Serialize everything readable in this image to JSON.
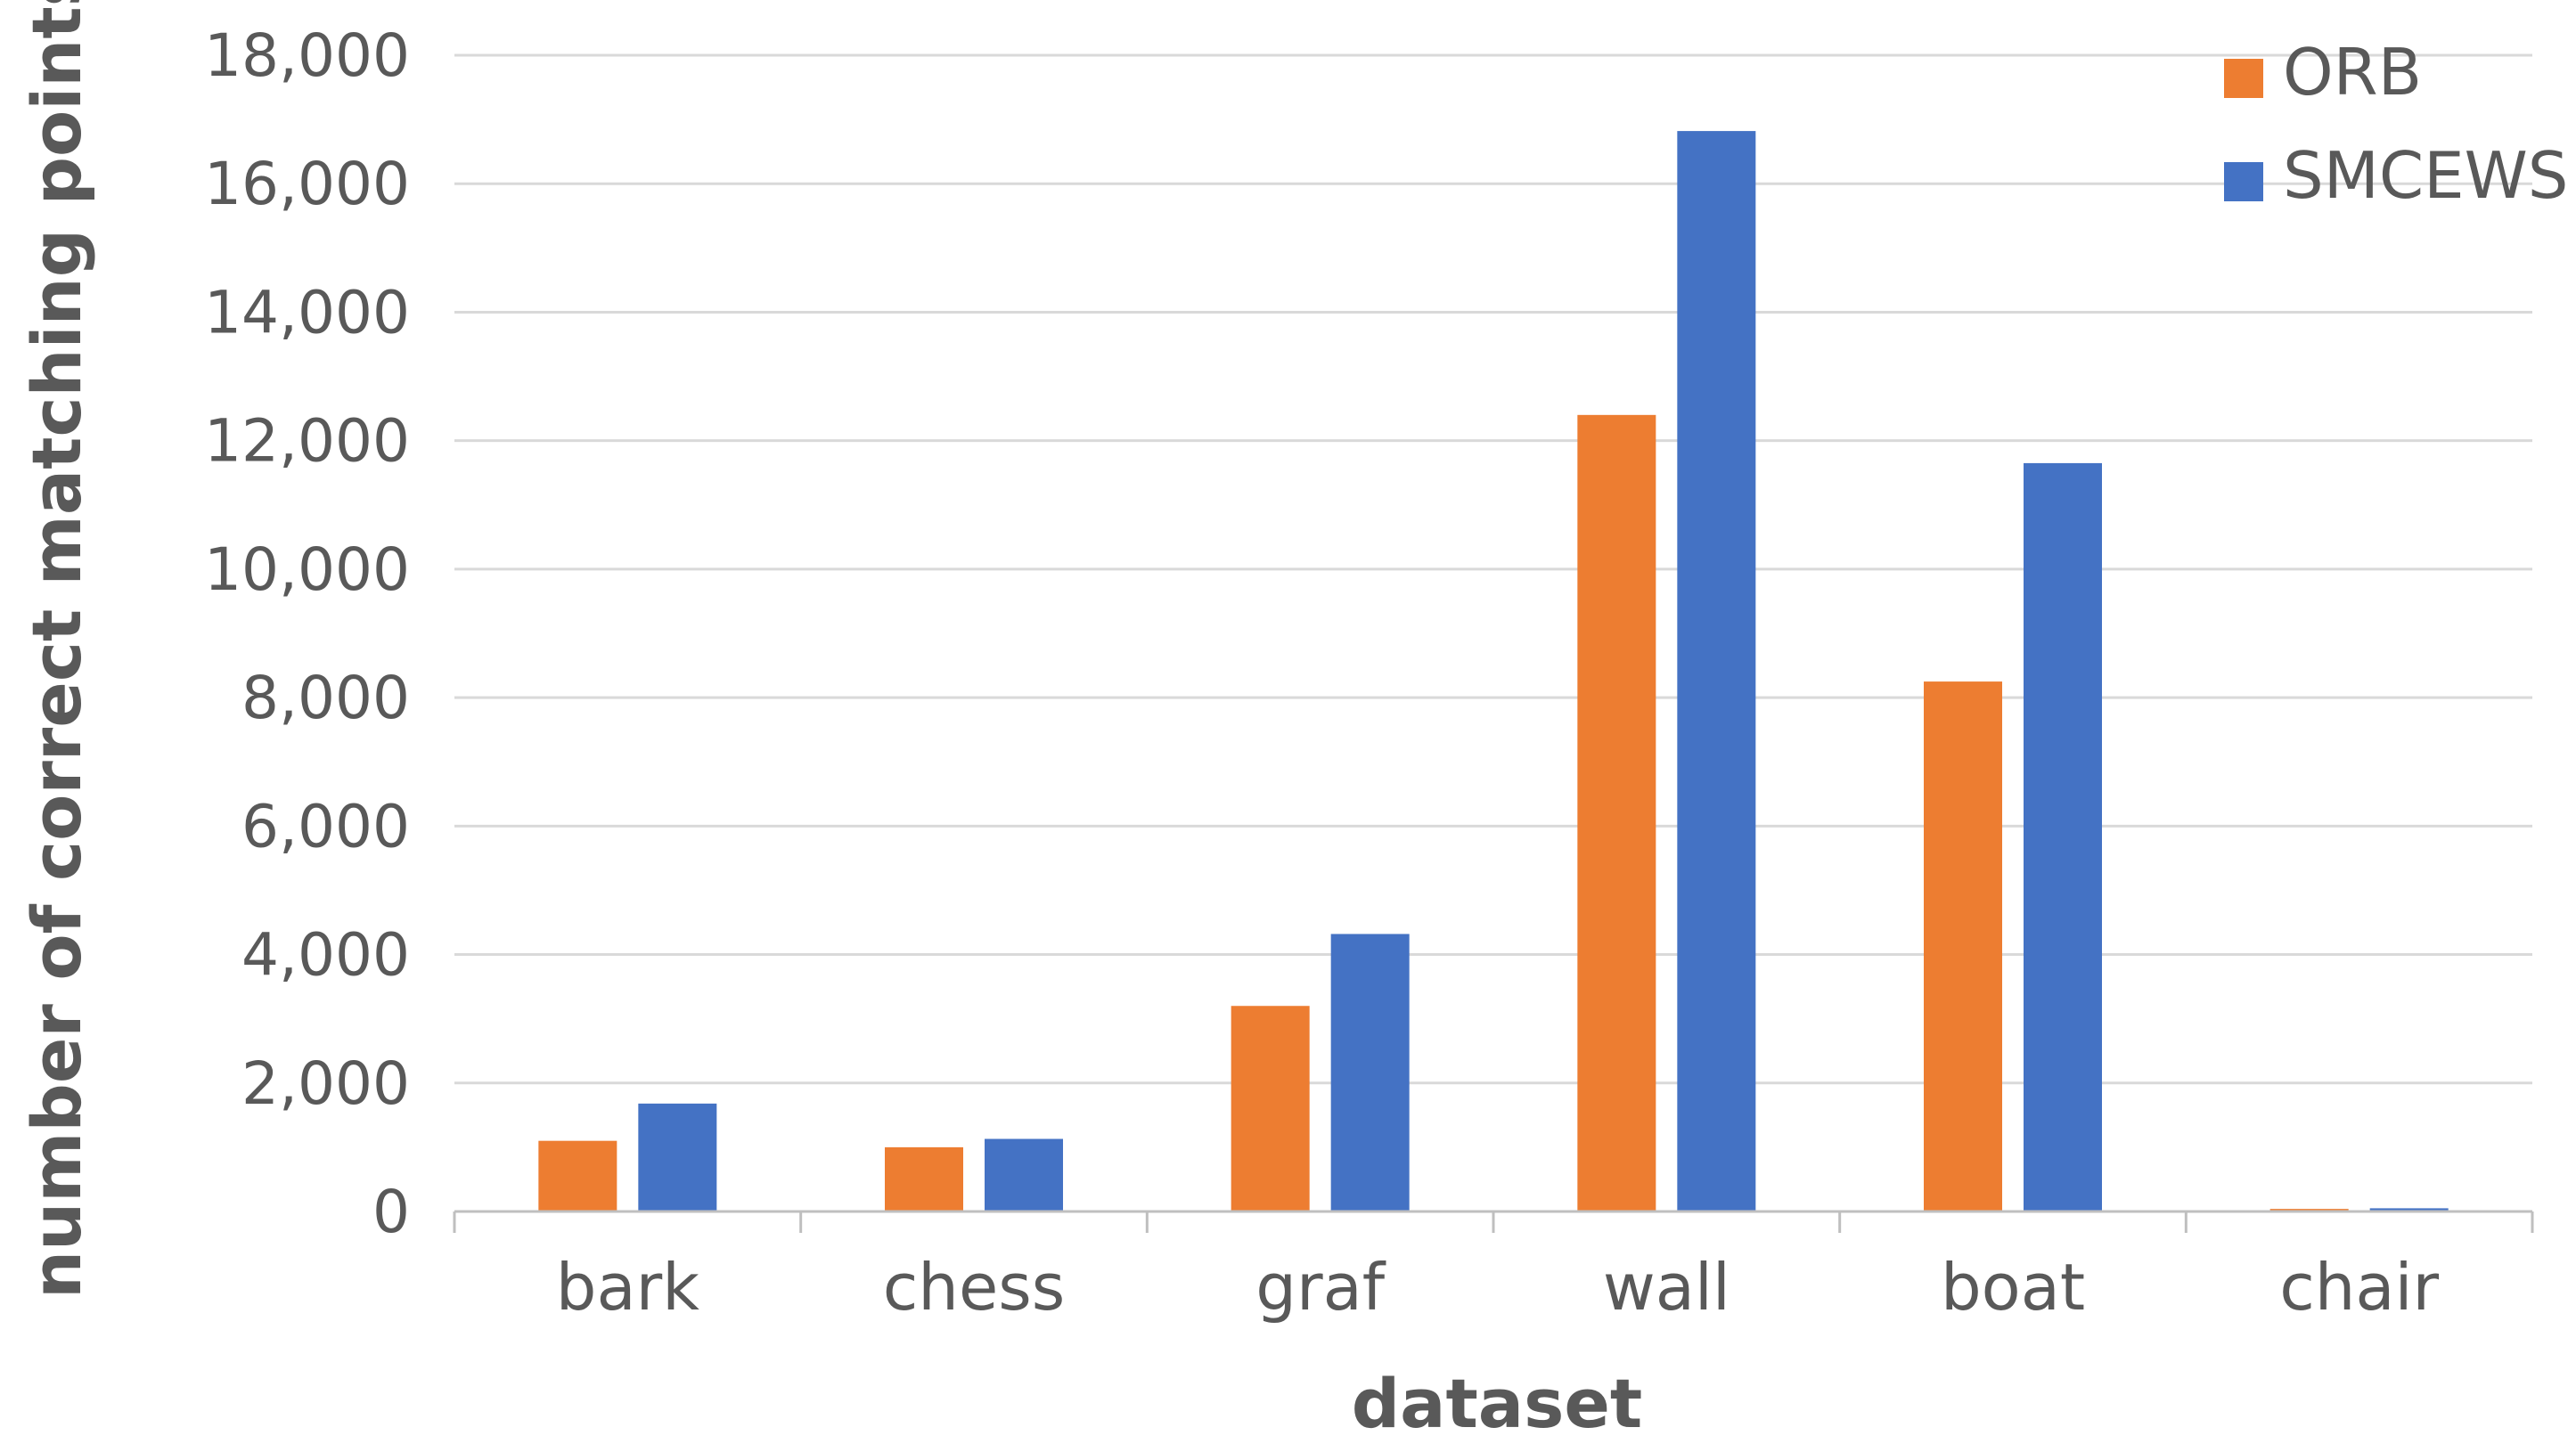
{
  "chart_data": {
    "type": "bar",
    "categories": [
      "bark",
      "chess",
      "graf",
      "wall",
      "boat",
      "chair"
    ],
    "series": [
      {
        "name": "ORB",
        "color": "#ED7D31",
        "values": [
          1100,
          1000,
          3200,
          12400,
          8250,
          40
        ]
      },
      {
        "name": "SMCEWS",
        "color": "#4472C4",
        "values": [
          1680,
          1130,
          4320,
          16820,
          11650,
          50
        ]
      }
    ],
    "title": "",
    "xlabel": "dataset",
    "ylabel": "number of correct matching points",
    "ylim": [
      0,
      18000
    ],
    "yticks": [
      "0",
      "2,000",
      "4,000",
      "6,000",
      "8,000",
      "10,000",
      "12,000",
      "14,000",
      "16,000",
      "18,000"
    ],
    "ytick_values": [
      0,
      2000,
      4000,
      6000,
      8000,
      10000,
      12000,
      14000,
      16000,
      18000
    ],
    "grid": true,
    "legend_position": "top-right"
  }
}
